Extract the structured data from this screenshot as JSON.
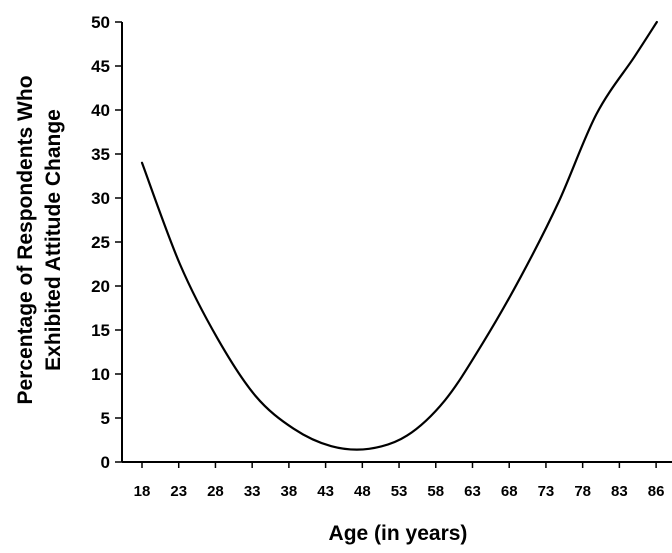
{
  "chart_data": {
    "type": "line",
    "title": "",
    "xlabel": "Age (in years)",
    "ylabel_lines": [
      "Percentage of Respondents Who",
      "Exhibited Attitude Change"
    ],
    "x_tick_labels": [
      "18",
      "23",
      "28",
      "33",
      "38",
      "43",
      "48",
      "53",
      "58",
      "63",
      "68",
      "73",
      "78",
      "83",
      "86"
    ],
    "y_ticks": [
      0,
      5,
      10,
      15,
      20,
      25,
      30,
      35,
      40,
      45,
      50
    ],
    "ylim": [
      0,
      50
    ],
    "xlim": [
      18,
      88
    ],
    "grid": false,
    "legend": "none",
    "series": [
      {
        "color": "#000000",
        "x": [
          18,
          23,
          28,
          33,
          38,
          43,
          48,
          53,
          58,
          63,
          68,
          73,
          78,
          83,
          86
        ],
        "y": [
          34,
          22.5,
          14,
          7.5,
          3.8,
          1.8,
          1.5,
          3,
          7,
          13.5,
          21,
          29.5,
          39.5,
          46,
          50
        ]
      }
    ]
  }
}
